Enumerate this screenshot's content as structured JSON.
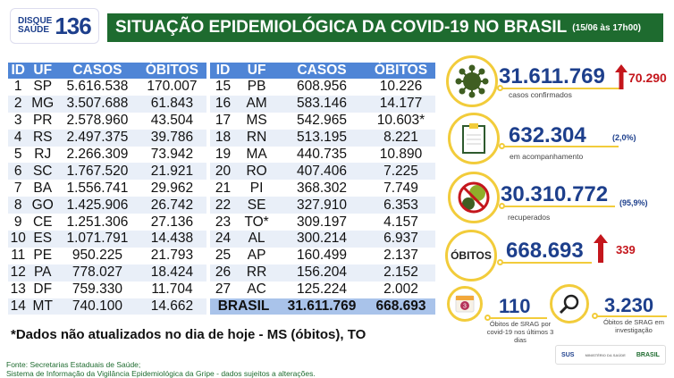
{
  "logo": {
    "line1": "DISQUE",
    "line2": "SAÚDE",
    "number": "136"
  },
  "header": {
    "title": "SITUAÇÃO EPIDEMIOLÓGICA DA COVID-19 NO BRASIL",
    "date": "(15/06 às 17h00)"
  },
  "table": {
    "columns": [
      "ID",
      "UF",
      "CASOS",
      "ÓBITOS"
    ],
    "left": [
      [
        "1",
        "SP",
        "5.616.538",
        "170.007"
      ],
      [
        "2",
        "MG",
        "3.507.688",
        "61.843"
      ],
      [
        "3",
        "PR",
        "2.578.960",
        "43.504"
      ],
      [
        "4",
        "RS",
        "2.497.375",
        "39.786"
      ],
      [
        "5",
        "RJ",
        "2.266.309",
        "73.942"
      ],
      [
        "6",
        "SC",
        "1.767.520",
        "21.921"
      ],
      [
        "7",
        "BA",
        "1.556.741",
        "29.962"
      ],
      [
        "8",
        "GO",
        "1.425.906",
        "26.742"
      ],
      [
        "9",
        "CE",
        "1.251.306",
        "27.136"
      ],
      [
        "10",
        "ES",
        "1.071.791",
        "14.438"
      ],
      [
        "11",
        "PE",
        "950.225",
        "21.793"
      ],
      [
        "12",
        "PA",
        "778.027",
        "18.424"
      ],
      [
        "13",
        "DF",
        "759.330",
        "11.704"
      ],
      [
        "14",
        "MT",
        "740.100",
        "14.662"
      ]
    ],
    "right": [
      [
        "15",
        "PB",
        "608.956",
        "10.226"
      ],
      [
        "16",
        "AM",
        "583.146",
        "14.177"
      ],
      [
        "17",
        "MS",
        "542.965",
        "10.603*"
      ],
      [
        "18",
        "RN",
        "513.195",
        "8.221"
      ],
      [
        "19",
        "MA",
        "440.735",
        "10.890"
      ],
      [
        "20",
        "RO",
        "407.406",
        "7.225"
      ],
      [
        "21",
        "PI",
        "368.302",
        "7.749"
      ],
      [
        "22",
        "SE",
        "327.910",
        "6.353"
      ],
      [
        "23",
        "TO*",
        "309.197",
        "4.157"
      ],
      [
        "24",
        "AL",
        "300.214",
        "6.937"
      ],
      [
        "25",
        "AP",
        "160.499",
        "2.137"
      ],
      [
        "26",
        "RR",
        "156.204",
        "2.152"
      ],
      [
        "27",
        "AC",
        "125.224",
        "2.002"
      ]
    ],
    "total": {
      "label": "BRASIL",
      "casos": "31.611.769",
      "obitos": "668.693"
    }
  },
  "stats": {
    "confirmed": {
      "value": "31.611.769",
      "label": "casos confirmados",
      "increase": "70.290",
      "icon": "virus-icon"
    },
    "monitoring": {
      "value": "632.304",
      "label": "em acompanhamento",
      "pct": "(2,0%)",
      "icon": "clipboard-icon"
    },
    "recovered": {
      "value": "30.310.772",
      "label": "recuperados",
      "pct": "(95,9%)",
      "icon": "no-virus-icon"
    },
    "deaths": {
      "badge": "ÓBITOS",
      "value": "668.693",
      "increase": "339"
    },
    "srag3": {
      "value": "110",
      "label": "Óbitos de SRAG por covid-19 nos últimos 3 dias",
      "cal": "3",
      "icon": "calendar-icon"
    },
    "srag_inv": {
      "value": "3.230",
      "label": "Óbitos de SRAG em investigação",
      "icon": "magnifier-icon"
    }
  },
  "colors": {
    "green": "#1e6b2f",
    "blue": "#1d3f8c",
    "yellow": "#f2cc3b",
    "red": "#c4161c",
    "table_header": "#4f85d6"
  },
  "footnote": "*Dados não atualizados no dia de hoje - MS (óbitos), TO",
  "source": {
    "line1": "Fonte: Secretarias Estaduais de Saúde;",
    "line2": "Sistema de Informação da Vigilância Epidemiológica da Gripe - dados sujeitos a alterações."
  },
  "partners": {
    "sus": "SUS",
    "ministry": "MINISTÉRIO DA SAÚDE",
    "brasil": "BRASIL"
  }
}
